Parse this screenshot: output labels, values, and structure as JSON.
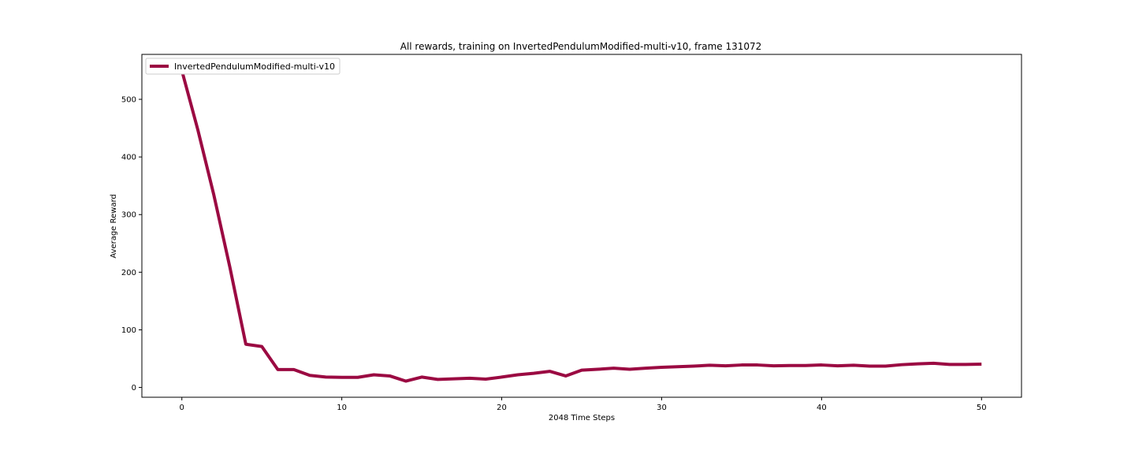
{
  "chart_data": {
    "type": "line",
    "title": "All rewards, training on InvertedPendulumModified-multi-v10, frame 131072",
    "xlabel": "2048 Time Steps",
    "ylabel": "Average Reward",
    "xlim": [
      -2.5,
      52.5
    ],
    "ylim": [
      -17,
      578
    ],
    "xticks": [
      0,
      10,
      20,
      30,
      40,
      50
    ],
    "yticks": [
      0,
      100,
      200,
      300,
      400,
      500
    ],
    "grid": false,
    "legend_position": "top-left",
    "series": [
      {
        "name": "InvertedPendulumModified-multi-v10",
        "color": "#9b0a42",
        "x": [
          0,
          1,
          2,
          3,
          4,
          5,
          6,
          7,
          8,
          9,
          10,
          11,
          12,
          13,
          14,
          15,
          16,
          17,
          18,
          19,
          20,
          21,
          22,
          23,
          24,
          25,
          26,
          27,
          28,
          29,
          30,
          31,
          32,
          33,
          34,
          35,
          36,
          37,
          38,
          39,
          40,
          41,
          42,
          43,
          44,
          45,
          46,
          47,
          48,
          49,
          50
        ],
        "y": [
          550,
          447,
          334,
          209,
          75,
          71,
          31,
          31,
          21,
          18,
          17.5,
          17.5,
          22,
          20,
          11,
          18,
          14,
          15,
          16,
          14.5,
          18,
          22,
          24.5,
          28,
          20,
          30,
          31.5,
          33.5,
          31.5,
          33.5,
          35,
          36,
          37,
          38.5,
          37.5,
          39,
          39,
          37.5,
          38,
          38,
          39,
          37.5,
          38.5,
          37,
          37,
          39.5,
          41,
          42,
          40,
          40,
          40.5
        ]
      }
    ]
  }
}
